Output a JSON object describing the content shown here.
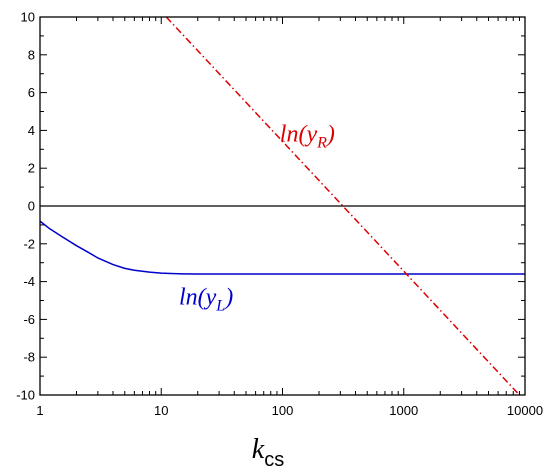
{
  "chart_data": {
    "type": "line",
    "xlabel": "k",
    "xlabel_sub": "cs",
    "xscale": "log",
    "xlim": [
      1,
      10000
    ],
    "ylim": [
      -10,
      10
    ],
    "x_ticks": [
      1,
      10,
      100,
      1000,
      10000
    ],
    "x_tick_labels": [
      "1",
      "10",
      "100",
      "1000",
      "10000"
    ],
    "y_ticks": [
      -10,
      -8,
      -6,
      -4,
      -2,
      0,
      2,
      4,
      6,
      8,
      10
    ],
    "y_tick_labels": [
      "-10",
      "-8",
      "-6",
      "-4",
      "-2",
      "0",
      "2",
      "4",
      "6",
      "8",
      "10"
    ],
    "grid": false,
    "reference_line": {
      "y": 0,
      "color": "#000000"
    },
    "series": [
      {
        "label_main": "ln",
        "label_var": "y",
        "label_sub": "L",
        "color": "#0000cc",
        "style": "solid",
        "label_at": {
          "x": 14,
          "y": -5.2
        },
        "x": [
          1,
          1.2,
          1.5,
          2,
          2.5,
          3,
          4,
          5,
          6,
          7,
          8,
          10,
          12,
          15,
          20,
          30,
          50,
          100,
          200,
          500,
          1000,
          2000,
          5000,
          10000
        ],
        "y": [
          -0.8,
          -1.2,
          -1.6,
          -2.1,
          -2.45,
          -2.75,
          -3.1,
          -3.3,
          -3.4,
          -3.45,
          -3.5,
          -3.55,
          -3.57,
          -3.59,
          -3.6,
          -3.6,
          -3.6,
          -3.6,
          -3.6,
          -3.6,
          -3.6,
          -3.6,
          -3.6,
          -3.6
        ]
      },
      {
        "label_main": "ln",
        "label_var": "y",
        "label_sub": "R",
        "color": "#dd0000",
        "style": "dashdot",
        "label_at": {
          "x": 95,
          "y": 3.4
        },
        "x": [
          11,
          9000
        ],
        "y": [
          10,
          -10
        ]
      }
    ]
  }
}
